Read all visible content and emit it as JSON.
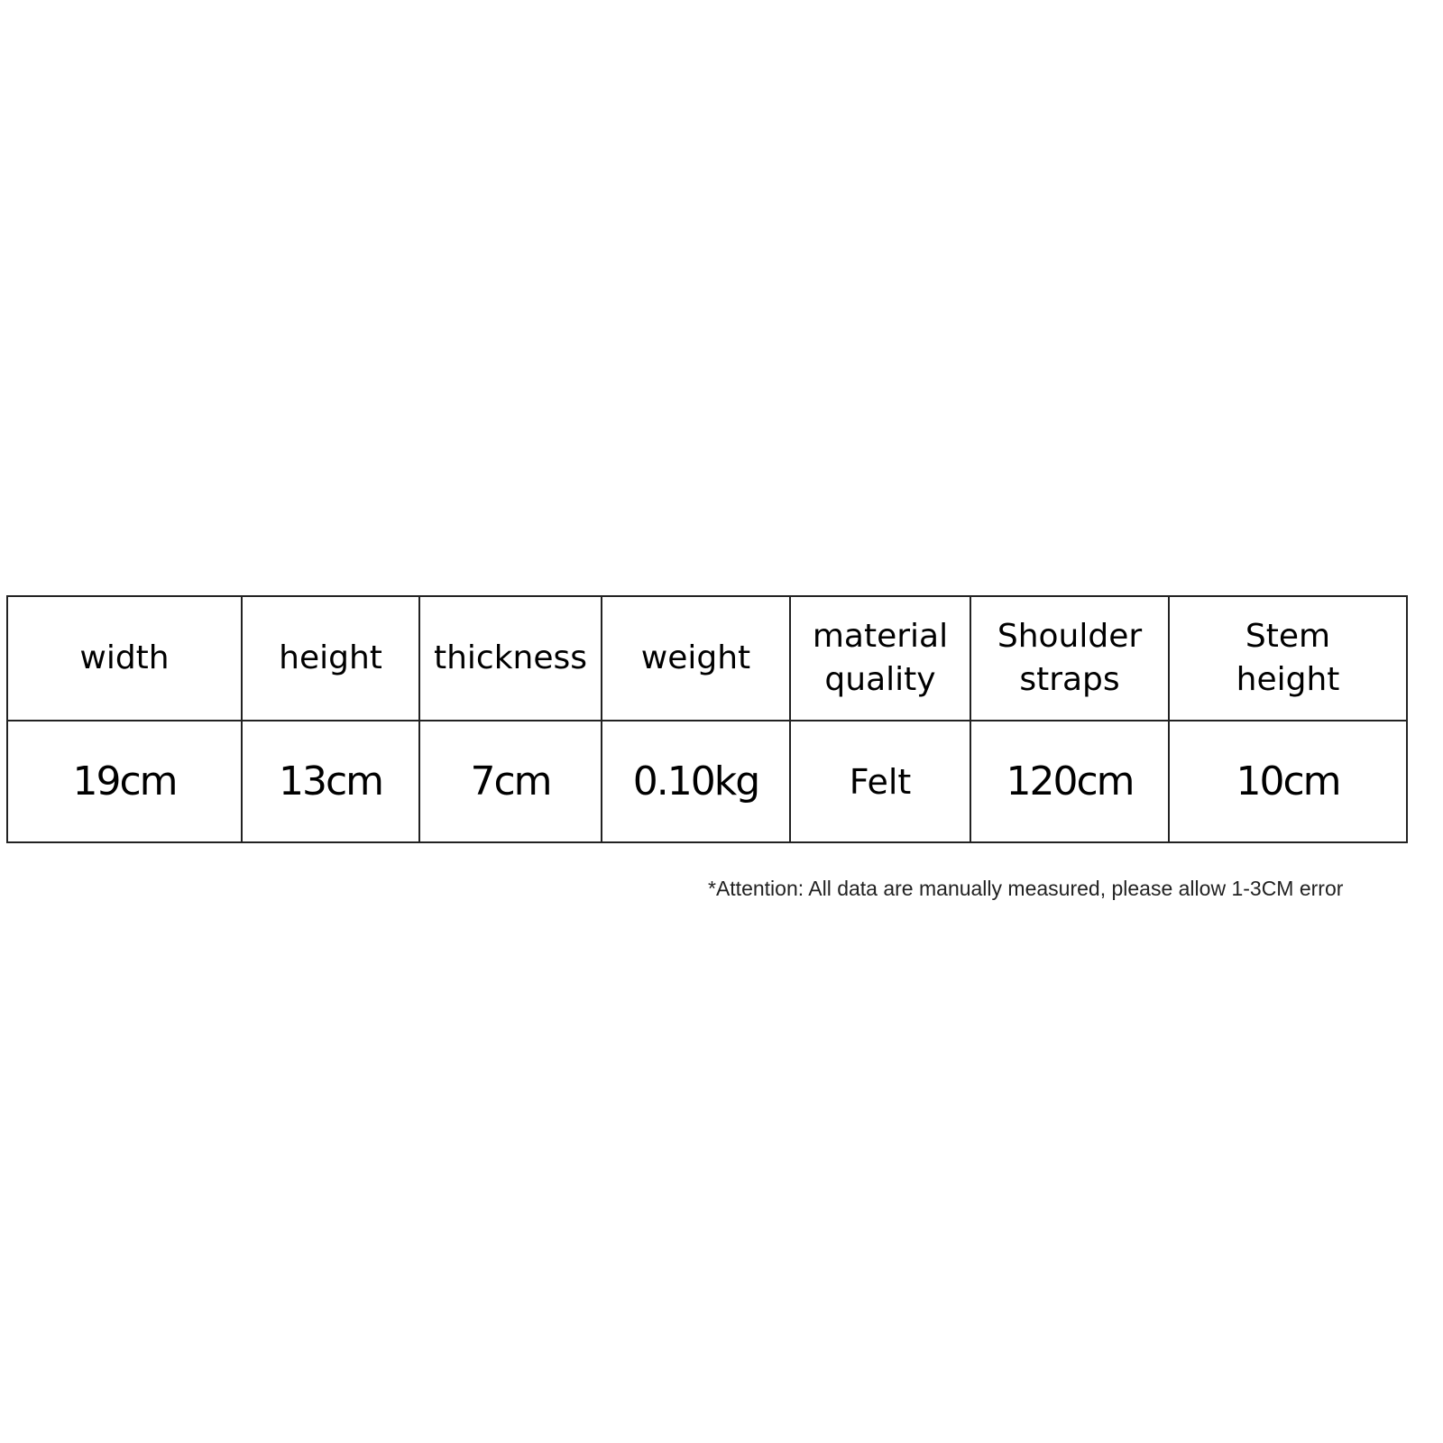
{
  "table": {
    "headers": [
      "width",
      "height",
      "thickness",
      "weight",
      "material quality",
      "Shoulder straps",
      "Stem height"
    ],
    "values": [
      "19cm",
      "13cm",
      "7cm",
      "0.10kg",
      "Felt",
      "120cm",
      "10cm"
    ]
  },
  "note": "*Attention: All data are manually measured, please allow 1-3CM error"
}
